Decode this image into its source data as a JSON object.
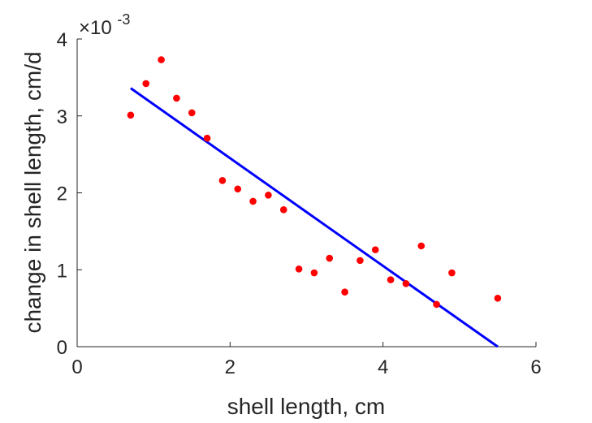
{
  "chart_data": {
    "type": "scatter",
    "xlabel": "shell length, cm",
    "ylabel": "change in shell length, cm/d",
    "y_multiplier": "×10",
    "y_multiplier_exponent": "-3",
    "xlim": [
      0,
      6
    ],
    "ylim": [
      0,
      0.004
    ],
    "x_ticks": [
      "0",
      "2",
      "4",
      "6"
    ],
    "y_ticks": [
      "0",
      "1",
      "2",
      "3",
      "4"
    ],
    "x_tick_values": [
      0,
      2,
      4,
      6
    ],
    "y_tick_values": [
      0,
      0.001,
      0.002,
      0.003,
      0.004
    ],
    "grid": false,
    "series": [
      {
        "kind": "points",
        "color": "#ff0000",
        "x": [
          0.7,
          0.9,
          1.1,
          1.3,
          1.5,
          1.7,
          1.9,
          2.1,
          2.3,
          2.5,
          2.7,
          2.9,
          3.1,
          3.3,
          3.5,
          3.7,
          3.9,
          4.1,
          4.3,
          4.5,
          4.7,
          4.9,
          5.5
        ],
        "y": [
          0.00301,
          0.00342,
          0.00373,
          0.00323,
          0.00304,
          0.00271,
          0.00216,
          0.00205,
          0.00189,
          0.00197,
          0.00178,
          0.00101,
          0.00096,
          0.00115,
          0.00071,
          0.00112,
          0.00126,
          0.00087,
          0.00082,
          0.00131,
          0.00055,
          0.00096,
          0.00063
        ]
      },
      {
        "kind": "line",
        "color": "#0000ff",
        "x": [
          0.7,
          5.5
        ],
        "y": [
          0.00336,
          0.0
        ]
      }
    ]
  }
}
